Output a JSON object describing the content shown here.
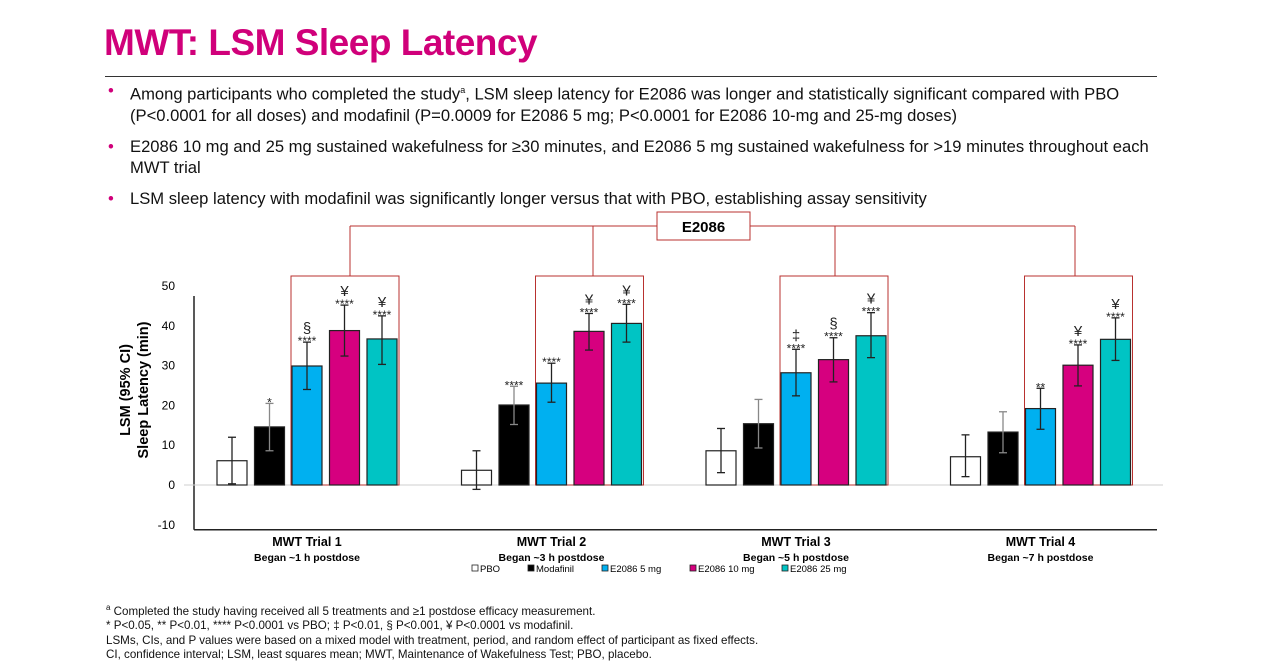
{
  "title": "MWT: LSM Sleep Latency",
  "bullets": [
    {
      "pre": "Among participants who completed the study",
      "sup": "a",
      "post": ", LSM sleep latency for E2086 was longer and statistically significant compared with PBO (P<0.0001 for all doses) and modafinil (P=0.0009 for E2086 5 mg; P<0.0001 for E2086 10-mg and 25-mg doses)"
    },
    {
      "pre": "E2086 10 mg and 25 mg sustained wakefulness for ≥30 minutes, and E2086 5 mg sustained wakefulness for >19 minutes throughout each MWT trial",
      "sup": "",
      "post": ""
    },
    {
      "pre": "LSM sleep latency with modafinil was significantly longer versus that with PBO, establishing assay sensitivity",
      "sup": "",
      "post": ""
    }
  ],
  "footnotes": [
    {
      "sup": "a",
      "text": " Completed the study having received all 5 treatments and ≥1 postdose efficacy measurement."
    },
    {
      "sup": "",
      "text": "* P<0.05, ** P<0.01, **** P<0.0001 vs PBO; ‡ P<0.01, § P<0.001, ¥ P<0.0001 vs modafinil."
    },
    {
      "sup": "",
      "text": "LSMs, CIs, and P values were based on a mixed model with treatment, period, and random effect of participant as fixed effects."
    },
    {
      "sup": "",
      "text": "CI, confidence interval; LSM, least squares mean; MWT, Maintenance of Wakefulness Test; PBO, placebo."
    }
  ],
  "chart_data": {
    "type": "bar",
    "ylabel_lines": [
      "LSM (95% CI)",
      "Sleep Latency (min)"
    ],
    "ylim": [
      -10,
      50
    ],
    "yticks": [
      -10,
      0,
      10,
      20,
      30,
      40,
      50
    ],
    "grid": false,
    "legend_position": "bottom",
    "bracket_label": "E2086",
    "categories": [
      {
        "label": "MWT Trial 1",
        "sub": "Began ~1 h postdose"
      },
      {
        "label": "MWT Trial 2",
        "sub": "Began ~3 h postdose"
      },
      {
        "label": "MWT Trial 3",
        "sub": "Began ~5 h postdose"
      },
      {
        "label": "MWT Trial 4",
        "sub": "Began ~7 h postdose"
      }
    ],
    "series": [
      {
        "name": "PBO",
        "color": "#ffffff",
        "values": [
          6.1,
          3.7,
          8.6,
          7.1
        ],
        "ci_low": [
          0.3,
          -1.1,
          3.1,
          2.1
        ],
        "ci_high": [
          12.0,
          8.6,
          14.2,
          12.6
        ],
        "sig_pbo": [
          "",
          "",
          "",
          ""
        ],
        "sig_mod": [
          "",
          "",
          "",
          ""
        ]
      },
      {
        "name": "Modafinil",
        "color": "#000000",
        "values": [
          14.6,
          20.1,
          15.4,
          13.3
        ],
        "ci_low": [
          8.6,
          15.2,
          9.3,
          8.1
        ],
        "ci_high": [
          20.5,
          24.8,
          21.5,
          18.4
        ],
        "sig_pbo": [
          "*",
          "****",
          "",
          ""
        ],
        "sig_mod": [
          "",
          "",
          "",
          ""
        ]
      },
      {
        "name": "E2086 5 mg",
        "color": "#00b0f0",
        "values": [
          29.9,
          25.6,
          28.2,
          19.2
        ],
        "ci_low": [
          24.0,
          20.8,
          22.4,
          14.0
        ],
        "ci_high": [
          35.9,
          30.6,
          34.1,
          24.3
        ],
        "sig_pbo": [
          "****",
          "****",
          "****",
          "**"
        ],
        "sig_mod": [
          "§",
          "",
          "‡",
          ""
        ]
      },
      {
        "name": "E2086 10 mg",
        "color": "#d6007f",
        "values": [
          38.8,
          38.6,
          31.5,
          30.1
        ],
        "ci_low": [
          32.4,
          33.9,
          25.9,
          24.9
        ],
        "ci_high": [
          45.2,
          43.1,
          37.0,
          35.2
        ],
        "sig_pbo": [
          "****",
          "****",
          "****",
          "****"
        ],
        "sig_mod": [
          "¥",
          "¥",
          "§",
          "¥"
        ]
      },
      {
        "name": "E2086 25 mg",
        "color": "#00c4c4",
        "values": [
          36.7,
          40.6,
          37.5,
          36.6
        ],
        "ci_low": [
          30.3,
          35.9,
          32.0,
          31.3
        ],
        "ci_high": [
          42.5,
          45.4,
          43.3,
          42.0
        ],
        "sig_pbo": [
          "****",
          "****",
          "****",
          "****"
        ],
        "sig_mod": [
          "¥",
          "¥",
          "¥",
          "¥"
        ]
      }
    ]
  }
}
